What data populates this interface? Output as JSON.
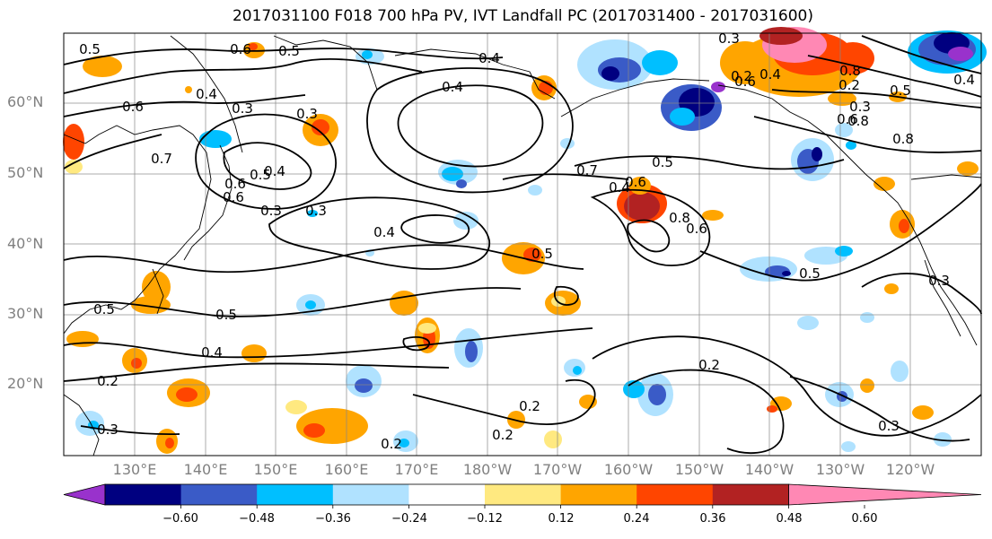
{
  "title": "2017031100 F018 700 hPa PV, IVT Landfall PC (2017031400 - 2017031600)",
  "map": {
    "projection": "PlateCarree",
    "extent": {
      "lon_min": 120,
      "lon_max": 250,
      "lat_min": 10,
      "lat_max": 70
    },
    "lat_ticks": [
      "20°N",
      "30°N",
      "40°N",
      "50°N",
      "60°N"
    ],
    "lon_ticks": [
      "130°E",
      "140°E",
      "150°E",
      "160°E",
      "170°E",
      "180°W",
      "170°W",
      "160°W",
      "150°W",
      "140°W",
      "130°W",
      "120°W"
    ],
    "gridlines": true,
    "coastlines": true
  },
  "contour_labels": [
    "0.6",
    "0.5",
    "0.5",
    "0.4",
    "0.3",
    "0.6",
    "0.4",
    "0.4",
    "0.3",
    "0.5",
    "0.4",
    "0.6",
    "0.6",
    "0.3",
    "0.4",
    "0.5",
    "0.6",
    "0.7",
    "0.5",
    "0.4",
    "0.8",
    "0.6",
    "0.5",
    "0.3",
    "0.5",
    "0.4",
    "0.2",
    "0.2",
    "0.2",
    "0.2",
    "0.3",
    "0.3",
    "0.2",
    "0.3",
    "0.5",
    "0.8",
    "0.6",
    "0.5",
    "0.4",
    "0.2",
    "0.2",
    "0.8",
    "0.3",
    "0.7",
    "0.4",
    "0.3",
    "0.8",
    "0.6"
  ],
  "colorbar": {
    "ticks": [
      "−0.60",
      "−0.48",
      "−0.36",
      "−0.24",
      "−0.12",
      "0.12",
      "0.24",
      "0.36",
      "0.48",
      "0.60"
    ],
    "colors": [
      "#9932CC",
      "#000080",
      "#3A5BC7",
      "#00BFFF",
      "#B0E2FF",
      "#FFFFFF",
      "#FFE980",
      "#FFA500",
      "#FF4500",
      "#B22222",
      "#FF88B4"
    ],
    "extend": "both"
  }
}
